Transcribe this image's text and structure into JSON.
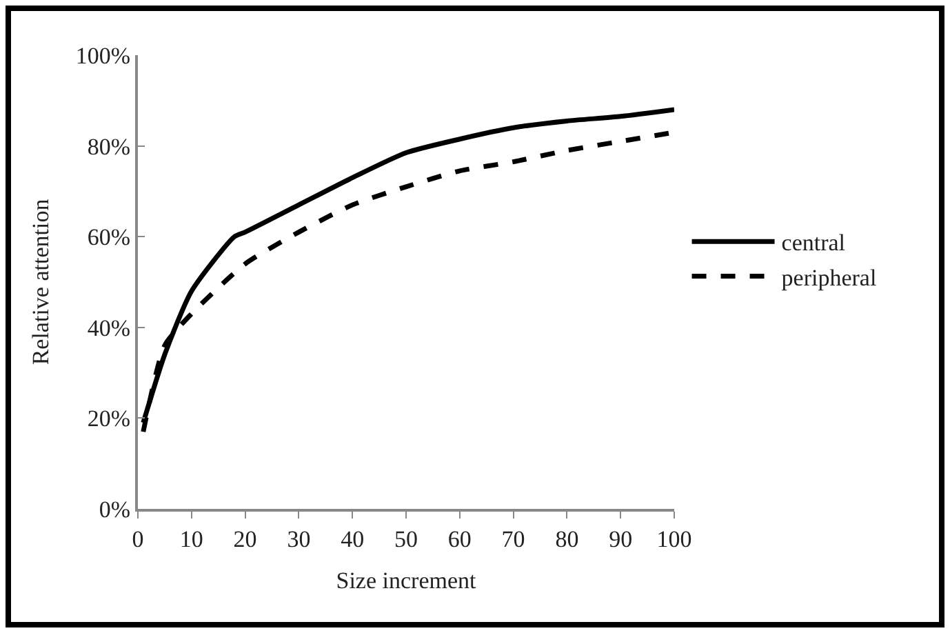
{
  "chart_data": {
    "type": "line",
    "xlabel": "Size increment",
    "ylabel": "Relative attention",
    "series": [
      {
        "name": "central",
        "color": "#000000",
        "line_style": "solid",
        "x": [
          1,
          5,
          10,
          18,
          20,
          30,
          40,
          50,
          60,
          70,
          80,
          90,
          100
        ],
        "values": [
          0.19,
          0.34,
          0.48,
          0.6,
          0.61,
          0.67,
          0.73,
          0.785,
          0.815,
          0.84,
          0.855,
          0.865,
          0.88
        ]
      },
      {
        "name": "peripheral",
        "color": "#000000",
        "line_style": "dashed",
        "x": [
          1,
          5,
          10,
          20,
          30,
          40,
          50,
          60,
          70,
          80,
          90,
          100
        ],
        "values": [
          0.17,
          0.36,
          0.43,
          0.54,
          0.61,
          0.67,
          0.71,
          0.745,
          0.765,
          0.79,
          0.81,
          0.83
        ]
      }
    ],
    "xlim": [
      0,
      100
    ],
    "xticks": [
      0,
      10,
      20,
      30,
      40,
      50,
      60,
      70,
      80,
      90,
      100
    ],
    "ylim": [
      0,
      1
    ],
    "yticks": [
      {
        "value": 0,
        "label": "0%"
      },
      {
        "value": 0.2,
        "label": "20%"
      },
      {
        "value": 0.4,
        "label": "40%"
      },
      {
        "value": 0.6,
        "label": "60%"
      },
      {
        "value": 0.8,
        "label": "80%"
      },
      {
        "value": 1,
        "label": "100%"
      }
    ],
    "legend": "right",
    "marker": "none"
  }
}
